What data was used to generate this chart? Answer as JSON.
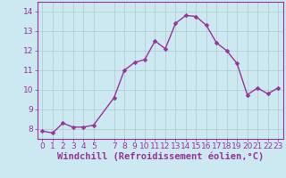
{
  "x": [
    0,
    1,
    2,
    3,
    4,
    5,
    7,
    8,
    9,
    10,
    11,
    12,
    13,
    14,
    15,
    16,
    17,
    18,
    19,
    20,
    21,
    22,
    23
  ],
  "y": [
    7.9,
    7.8,
    8.3,
    8.1,
    8.1,
    8.2,
    9.6,
    11.0,
    11.4,
    11.55,
    12.5,
    12.1,
    13.4,
    13.8,
    13.75,
    13.3,
    12.4,
    12.0,
    11.35,
    9.75,
    10.1,
    9.8,
    10.1
  ],
  "line_color": "#993399",
  "marker_color": "#993399",
  "bg_color": "#cce8f0",
  "grid_color": "#aacccc",
  "xlabel": "Windchill (Refroidissement éolien,°C)",
  "xlim": [
    -0.5,
    23.5
  ],
  "ylim": [
    7.5,
    14.5
  ],
  "yticks": [
    8,
    9,
    10,
    11,
    12,
    13,
    14
  ],
  "xticks": [
    0,
    1,
    2,
    3,
    4,
    5,
    7,
    8,
    9,
    10,
    11,
    12,
    13,
    14,
    15,
    16,
    17,
    18,
    19,
    20,
    21,
    22,
    23
  ],
  "xlabel_color": "#993399",
  "tick_color": "#993399",
  "font_size": 6.5,
  "xlabel_font_size": 7.5,
  "line_width": 1.0,
  "marker_size": 2.5,
  "spine_color": "#993399"
}
